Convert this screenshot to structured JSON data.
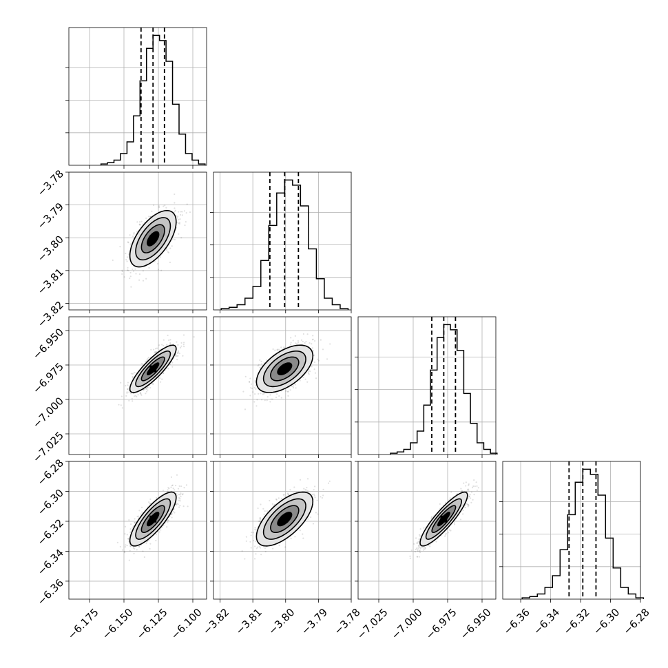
{
  "chart_data": {
    "type": "corner",
    "title": "",
    "parameters": [
      {
        "name": "",
        "range": [
          -6.19,
          -6.09
        ],
        "ticks": [
          -6.175,
          -6.15,
          -6.125,
          -6.1
        ],
        "tick_labels": [
          "−6.175",
          "−6.150",
          "−6.125",
          "−6.100"
        ],
        "quantiles": [
          -6.1376,
          -6.1289,
          -6.1206
        ],
        "median": -6.1289,
        "sigma": 0.0084
      },
      {
        "name": "",
        "range": [
          -3.822,
          -3.78
        ],
        "ticks": [
          -3.82,
          -3.81,
          -3.8,
          -3.79,
          -3.78
        ],
        "tick_labels": [
          "−3.82",
          "−3.81",
          "−3.80",
          "−3.79",
          "−3.78"
        ],
        "quantiles": [
          -3.8048,
          -3.8003,
          -3.7961
        ],
        "median": -3.8003,
        "sigma": 0.0043
      },
      {
        "name": "",
        "range": [
          -7.04,
          -6.94
        ],
        "ticks": [
          -7.025,
          -7.0,
          -6.975,
          -6.95
        ],
        "tick_labels": [
          "−7.025",
          "−7.000",
          "−6.975",
          "−6.950"
        ],
        "quantiles": [
          -6.9865,
          -6.9778,
          -6.9693
        ],
        "median": -6.9778,
        "sigma": 0.0086
      },
      {
        "name": "",
        "range": [
          -6.372,
          -6.28
        ],
        "ticks": [
          -6.36,
          -6.34,
          -6.32,
          -6.3,
          -6.28
        ],
        "tick_labels": [
          "−6.36",
          "−6.34",
          "−6.32",
          "−6.30",
          "−6.28"
        ],
        "quantiles": [
          -6.3277,
          -6.3185,
          -6.3097
        ],
        "median": -6.3185,
        "sigma": 0.009
      }
    ],
    "histograms": [
      {
        "param": 0,
        "counts": [
          1,
          2,
          4,
          9,
          18,
          38,
          65,
          90,
          100,
          96,
          80,
          47,
          24,
          9,
          4,
          1
        ]
      },
      {
        "param": 1,
        "counts": [
          1,
          2,
          4,
          9,
          18,
          38,
          65,
          90,
          100,
          96,
          80,
          47,
          24,
          9,
          4,
          1
        ]
      },
      {
        "param": 2,
        "counts": [
          1,
          2,
          4,
          9,
          18,
          38,
          65,
          90,
          100,
          96,
          80,
          47,
          24,
          9,
          4,
          1
        ]
      },
      {
        "param": 3,
        "counts": [
          1,
          2,
          4,
          9,
          18,
          38,
          65,
          90,
          100,
          96,
          80,
          47,
          24,
          9,
          4,
          1
        ]
      }
    ],
    "correlations": [
      {
        "x": 0,
        "y": 1,
        "rho": 0.6
      },
      {
        "x": 0,
        "y": 2,
        "rho": 0.85
      },
      {
        "x": 1,
        "y": 2,
        "rho": 0.55
      },
      {
        "x": 0,
        "y": 3,
        "rho": 0.8
      },
      {
        "x": 1,
        "y": 3,
        "rho": 0.65
      },
      {
        "x": 2,
        "y": 3,
        "rho": 0.88
      }
    ],
    "contour_levels_sigma": [
      0.5,
      1.0,
      1.5,
      2.0
    ],
    "grid": true,
    "colors": {
      "points": "#000000",
      "contour_line": "#000000",
      "fill_levels": [
        "#ffffff",
        "#e6e6e6",
        "#c4c4c4",
        "#8a8a8a",
        "#000000"
      ]
    }
  }
}
